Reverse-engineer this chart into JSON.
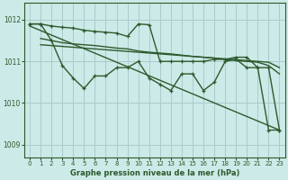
{
  "background_color": "#cceae7",
  "grid_color": "#aacccc",
  "line_color": "#2d5a2d",
  "title": "Graphe pression niveau de la mer (hPa)",
  "xlim": [
    -0.5,
    23.5
  ],
  "ylim": [
    1008.7,
    1012.4
  ],
  "yticks": [
    1009,
    1010,
    1011,
    1012
  ],
  "xticks": [
    0,
    1,
    2,
    3,
    4,
    5,
    6,
    7,
    8,
    9,
    10,
    11,
    12,
    13,
    14,
    15,
    16,
    17,
    18,
    19,
    20,
    21,
    22,
    23
  ],
  "series": [
    {
      "x": [
        0,
        1,
        2,
        3,
        4,
        5,
        6,
        7,
        8,
        9,
        10,
        11,
        12,
        13,
        14,
        15,
        16,
        17,
        18,
        19,
        20,
        21,
        22,
        23
      ],
      "y": [
        1011.9,
        1011.9,
        1011.85,
        1011.82,
        1011.8,
        1011.75,
        1011.72,
        1011.7,
        1011.68,
        1011.6,
        1011.9,
        1011.88,
        1011.0,
        1011.0,
        1011.0,
        1011.0,
        1011.0,
        1011.05,
        1011.05,
        1011.1,
        1011.1,
        1010.85,
        1010.85,
        1009.35
      ],
      "marker": true
    },
    {
      "x": [
        1,
        2,
        3,
        4,
        5,
        6,
        7,
        8,
        9,
        10,
        11,
        12,
        13,
        14,
        15,
        16,
        17,
        18,
        19,
        20,
        21,
        22,
        23
      ],
      "y": [
        1011.55,
        1011.5,
        1011.45,
        1011.42,
        1011.4,
        1011.38,
        1011.35,
        1011.32,
        1011.3,
        1011.25,
        1011.22,
        1011.2,
        1011.18,
        1011.15,
        1011.12,
        1011.1,
        1011.08,
        1011.05,
        1011.02,
        1011.0,
        1010.98,
        1010.9,
        1010.7
      ],
      "marker": false
    },
    {
      "x": [
        1,
        2,
        3,
        4,
        5,
        6,
        7,
        8,
        9,
        10,
        11,
        12,
        13,
        14,
        15,
        16,
        17,
        18,
        19,
        20,
        21,
        22,
        23
      ],
      "y": [
        1011.4,
        1011.38,
        1011.36,
        1011.34,
        1011.32,
        1011.3,
        1011.28,
        1011.26,
        1011.24,
        1011.22,
        1011.2,
        1011.18,
        1011.16,
        1011.14,
        1011.12,
        1011.1,
        1011.08,
        1011.06,
        1011.04,
        1011.02,
        1011.0,
        1010.98,
        1010.85
      ],
      "marker": false
    },
    {
      "x": [
        0,
        1,
        2,
        3,
        4,
        5,
        6,
        7,
        8,
        9,
        10,
        11,
        12,
        13,
        14,
        15,
        16,
        17,
        18,
        19,
        20,
        21,
        22,
        23
      ],
      "y": [
        1011.9,
        1011.9,
        1011.5,
        1010.9,
        1010.6,
        1010.35,
        1010.65,
        1010.65,
        1010.85,
        1010.85,
        1011.0,
        1010.6,
        1010.45,
        1010.3,
        1010.7,
        1010.7,
        1010.3,
        1010.5,
        1011.0,
        1011.05,
        1010.85,
        1010.85,
        1009.35,
        1009.35
      ],
      "marker": true
    },
    {
      "x": [
        0,
        23
      ],
      "y": [
        1011.85,
        1009.35
      ],
      "marker": false
    }
  ]
}
